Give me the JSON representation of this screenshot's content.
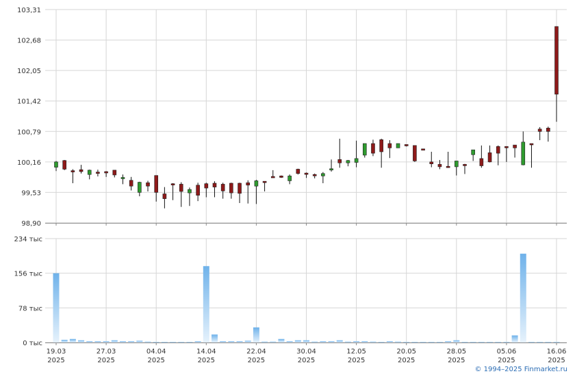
{
  "chart_data": {
    "type": "candlestick",
    "dates": [
      "19.03",
      "20.03",
      "21.03",
      "24.03",
      "25.03",
      "26.03",
      "27.03",
      "28.03",
      "31.03",
      "01.04",
      "02.04",
      "03.04",
      "04.04",
      "07.04",
      "08.04",
      "09.04",
      "10.04",
      "11.04",
      "14.04",
      "15.04",
      "16.04",
      "17.04",
      "18.04",
      "21.04",
      "22.04",
      "23.04",
      "24.04",
      "25.04",
      "28.04",
      "29.04",
      "30.04",
      "02.05",
      "05.05",
      "06.05",
      "07.05",
      "08.05",
      "12.05",
      "13.05",
      "14.05",
      "15.05",
      "16.05",
      "19.05",
      "20.05",
      "21.05",
      "22.05",
      "23.05",
      "26.05",
      "27.05",
      "28.05",
      "29.05",
      "30.05",
      "02.06",
      "03.06",
      "04.06",
      "05.06",
      "06.06",
      "09.06",
      "10.06",
      "11.06",
      "13.06",
      "16.06"
    ],
    "price": {
      "ylim": [
        98.9,
        103.31
      ],
      "yticks": [
        "103,31",
        "102,68",
        "102,05",
        "101,42",
        "100,79",
        "100,16",
        "99,53",
        "98,90"
      ],
      "candles": [
        {
          "o": 100.05,
          "h": 100.18,
          "l": 99.97,
          "c": 100.16,
          "dir": "up"
        },
        {
          "o": 100.19,
          "h": 100.2,
          "l": 99.99,
          "c": 100.01,
          "dir": "down"
        },
        {
          "o": 99.98,
          "h": 100.01,
          "l": 99.72,
          "c": 99.97,
          "dir": "down"
        },
        {
          "o": 100.0,
          "h": 100.1,
          "l": 99.92,
          "c": 99.96,
          "dir": "down"
        },
        {
          "o": 99.9,
          "h": 100.0,
          "l": 99.8,
          "c": 99.99,
          "dir": "up"
        },
        {
          "o": 99.95,
          "h": 100.0,
          "l": 99.86,
          "c": 99.93,
          "dir": "down"
        },
        {
          "o": 99.95,
          "h": 99.97,
          "l": 99.85,
          "c": 99.96,
          "dir": "down"
        },
        {
          "o": 99.99,
          "h": 99.99,
          "l": 99.84,
          "c": 99.89,
          "dir": "down"
        },
        {
          "o": 99.83,
          "h": 99.9,
          "l": 99.7,
          "c": 99.84,
          "dir": "up"
        },
        {
          "o": 99.78,
          "h": 99.85,
          "l": 99.57,
          "c": 99.66,
          "dir": "down"
        },
        {
          "o": 99.53,
          "h": 99.75,
          "l": 99.45,
          "c": 99.74,
          "dir": "up"
        },
        {
          "o": 99.73,
          "h": 99.77,
          "l": 99.55,
          "c": 99.66,
          "dir": "down"
        },
        {
          "o": 99.88,
          "h": 99.88,
          "l": 99.34,
          "c": 99.53,
          "dir": "down"
        },
        {
          "o": 99.5,
          "h": 99.64,
          "l": 99.2,
          "c": 99.4,
          "dir": "down"
        },
        {
          "o": 99.71,
          "h": 99.72,
          "l": 99.37,
          "c": 99.7,
          "dir": "down"
        },
        {
          "o": 99.7,
          "h": 99.74,
          "l": 99.23,
          "c": 99.55,
          "dir": "down"
        },
        {
          "o": 99.52,
          "h": 99.63,
          "l": 99.25,
          "c": 99.59,
          "dir": "up"
        },
        {
          "o": 99.68,
          "h": 99.73,
          "l": 99.35,
          "c": 99.47,
          "dir": "down"
        },
        {
          "o": 99.71,
          "h": 99.73,
          "l": 99.43,
          "c": 99.62,
          "dir": "down"
        },
        {
          "o": 99.72,
          "h": 99.76,
          "l": 99.43,
          "c": 99.64,
          "dir": "down"
        },
        {
          "o": 99.7,
          "h": 99.73,
          "l": 99.4,
          "c": 99.56,
          "dir": "down"
        },
        {
          "o": 99.72,
          "h": 99.73,
          "l": 99.4,
          "c": 99.52,
          "dir": "down"
        },
        {
          "o": 99.72,
          "h": 99.73,
          "l": 99.31,
          "c": 99.51,
          "dir": "down"
        },
        {
          "o": 99.73,
          "h": 99.78,
          "l": 99.3,
          "c": 99.68,
          "dir": "down"
        },
        {
          "o": 99.66,
          "h": 99.79,
          "l": 99.29,
          "c": 99.77,
          "dir": "up"
        },
        {
          "o": 99.76,
          "h": 99.76,
          "l": 99.55,
          "c": 99.75,
          "dir": "down"
        },
        {
          "o": 99.86,
          "h": 99.99,
          "l": 99.85,
          "c": 99.85,
          "dir": "down"
        },
        {
          "o": 99.87,
          "h": 99.88,
          "l": 99.83,
          "c": 99.84,
          "dir": "down"
        },
        {
          "o": 99.77,
          "h": 99.9,
          "l": 99.7,
          "c": 99.87,
          "dir": "up"
        },
        {
          "o": 100.01,
          "h": 100.02,
          "l": 99.9,
          "c": 99.92,
          "dir": "down"
        },
        {
          "o": 99.93,
          "h": 99.94,
          "l": 99.83,
          "c": 99.91,
          "dir": "down"
        },
        {
          "o": 99.9,
          "h": 99.92,
          "l": 99.82,
          "c": 99.88,
          "dir": "down"
        },
        {
          "o": 99.87,
          "h": 99.95,
          "l": 99.72,
          "c": 99.92,
          "dir": "up"
        },
        {
          "o": 100.02,
          "h": 100.21,
          "l": 99.96,
          "c": 100.02,
          "dir": "up"
        },
        {
          "o": 100.21,
          "h": 100.64,
          "l": 100.04,
          "c": 100.14,
          "dir": "down"
        },
        {
          "o": 100.14,
          "h": 100.2,
          "l": 100.07,
          "c": 100.19,
          "dir": "up"
        },
        {
          "o": 100.15,
          "h": 100.6,
          "l": 100.05,
          "c": 100.23,
          "dir": "up"
        },
        {
          "o": 100.3,
          "h": 100.54,
          "l": 100.25,
          "c": 100.54,
          "dir": "up"
        },
        {
          "o": 100.54,
          "h": 100.62,
          "l": 100.28,
          "c": 100.34,
          "dir": "down"
        },
        {
          "o": 100.62,
          "h": 100.64,
          "l": 100.04,
          "c": 100.37,
          "dir": "down"
        },
        {
          "o": 100.54,
          "h": 100.61,
          "l": 100.24,
          "c": 100.45,
          "dir": "down"
        },
        {
          "o": 100.45,
          "h": 100.53,
          "l": 100.45,
          "c": 100.54,
          "dir": "up"
        },
        {
          "o": 100.52,
          "h": 100.52,
          "l": 100.48,
          "c": 100.5,
          "dir": "down"
        },
        {
          "o": 100.5,
          "h": 100.48,
          "l": 100.16,
          "c": 100.18,
          "dir": "down"
        },
        {
          "o": 100.43,
          "h": 100.43,
          "l": 100.41,
          "c": 100.42,
          "dir": "down"
        },
        {
          "o": 100.16,
          "h": 100.37,
          "l": 100.05,
          "c": 100.12,
          "dir": "down"
        },
        {
          "o": 100.11,
          "h": 100.2,
          "l": 100.01,
          "c": 100.06,
          "dir": "down"
        },
        {
          "o": 100.07,
          "h": 100.37,
          "l": 100.05,
          "c": 100.05,
          "dir": "down"
        },
        {
          "o": 100.06,
          "h": 100.17,
          "l": 99.88,
          "c": 100.18,
          "dir": "up"
        },
        {
          "o": 100.11,
          "h": 100.12,
          "l": 99.91,
          "c": 100.1,
          "dir": "down"
        },
        {
          "o": 100.31,
          "h": 100.38,
          "l": 100.18,
          "c": 100.41,
          "dir": "up"
        },
        {
          "o": 100.23,
          "h": 100.5,
          "l": 100.04,
          "c": 100.08,
          "dir": "down"
        },
        {
          "o": 100.35,
          "h": 100.5,
          "l": 100.15,
          "c": 100.16,
          "dir": "down"
        },
        {
          "o": 100.48,
          "h": 100.5,
          "l": 100.09,
          "c": 100.34,
          "dir": "down"
        },
        {
          "o": 100.48,
          "h": 100.48,
          "l": 100.16,
          "c": 100.47,
          "dir": "down"
        },
        {
          "o": 100.51,
          "h": 100.51,
          "l": 100.25,
          "c": 100.45,
          "dir": "down"
        },
        {
          "o": 100.1,
          "h": 100.79,
          "l": 100.09,
          "c": 100.57,
          "dir": "up"
        },
        {
          "o": 100.54,
          "h": 100.54,
          "l": 100.04,
          "c": 100.53,
          "dir": "down"
        },
        {
          "o": 100.84,
          "h": 100.88,
          "l": 100.61,
          "c": 100.79,
          "dir": "down"
        },
        {
          "o": 100.86,
          "h": 100.89,
          "l": 100.58,
          "c": 100.79,
          "dir": "down"
        },
        {
          "o": 102.96,
          "h": 102.96,
          "l": 100.99,
          "c": 101.56,
          "dir": "down"
        }
      ]
    },
    "volume": {
      "ylim": [
        0,
        234000
      ],
      "yticks": [
        "234 тыс",
        "156 тыс",
        "78 тыс",
        "0 тыс"
      ],
      "values": [
        156000,
        6000,
        8000,
        5000,
        3000,
        3000,
        3000,
        5000,
        3000,
        3000,
        4000,
        2000,
        1500,
        1500,
        1500,
        1500,
        1500,
        3000,
        172000,
        18000,
        3000,
        3000,
        3000,
        4000,
        34000,
        2000,
        2000,
        8000,
        3000,
        5000,
        5000,
        2000,
        3000,
        3000,
        5000,
        2000,
        3000,
        3000,
        2000,
        1500,
        3000,
        2000,
        1500,
        1500,
        1500,
        1500,
        1500,
        3000,
        5000,
        1500,
        1500,
        1500,
        1500,
        1500,
        1500,
        16000,
        200000,
        1500,
        1500,
        1500,
        1500
      ]
    },
    "x_labels": [
      {
        "date": "19.03",
        "year": "2025"
      },
      {
        "date": "27.03",
        "year": "2025"
      },
      {
        "date": "04.04",
        "year": "2025"
      },
      {
        "date": "14.04",
        "year": "2025"
      },
      {
        "date": "22.04",
        "year": "2025"
      },
      {
        "date": "30.04",
        "year": "2025"
      },
      {
        "date": "12.05",
        "year": "2025"
      },
      {
        "date": "20.05",
        "year": "2025"
      },
      {
        "date": "28.05",
        "year": "2025"
      },
      {
        "date": "05.06",
        "year": "2025"
      },
      {
        "date": "16.06",
        "year": "2025"
      }
    ],
    "colors": {
      "up": "#2f9a2f",
      "down": "#8e1a1a",
      "volume_top": "#6fb2ea",
      "volume_bottom": "#e6f2fc",
      "grid": "#d6d6d6",
      "axis": "#8a8a8a"
    }
  },
  "footer": {
    "text": "© 1994–2025 Finmarket.ru"
  }
}
